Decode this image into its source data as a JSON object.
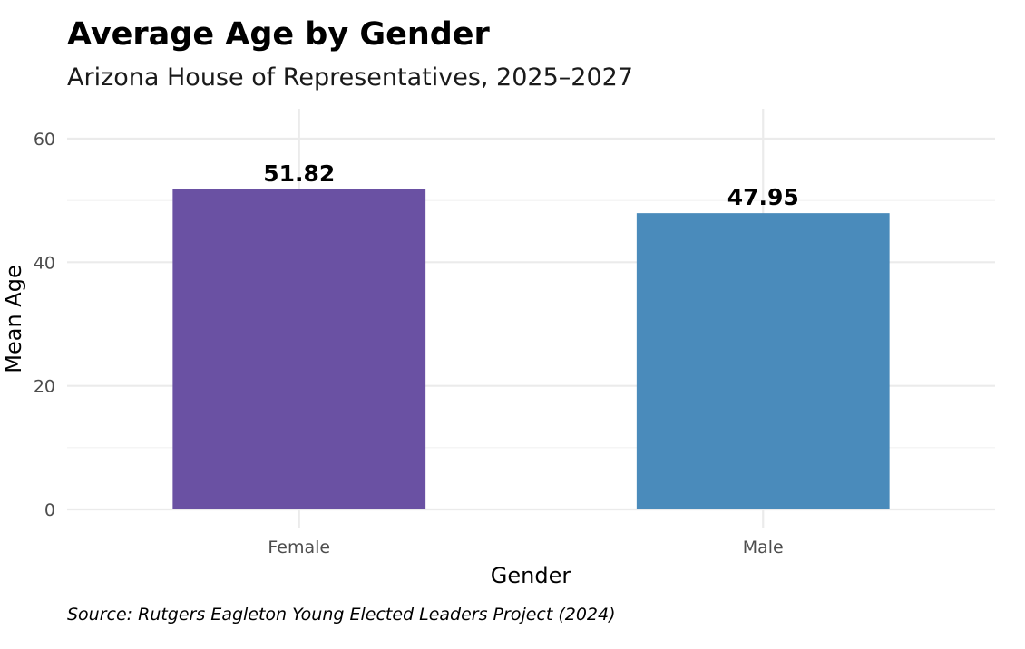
{
  "chart_data": {
    "type": "bar",
    "title": "Average Age by Gender",
    "subtitle": "Arizona House of Representatives, 2025–2027",
    "caption": "Source: Rutgers Eagleton Young Elected Leaders Project (2024)",
    "xlabel": "Gender",
    "ylabel": "Mean Age",
    "categories": [
      "Female",
      "Male"
    ],
    "values": [
      51.82,
      47.95
    ],
    "value_labels": [
      "51.82",
      "47.95"
    ],
    "colors": [
      "#6a51a3",
      "#4a8bbb"
    ],
    "ylim": [
      0,
      60
    ],
    "yticks": [
      0,
      20,
      40,
      60
    ],
    "ytick_labels": [
      "0",
      "20",
      "40",
      "60"
    ],
    "grid": true,
    "legend": "none"
  }
}
